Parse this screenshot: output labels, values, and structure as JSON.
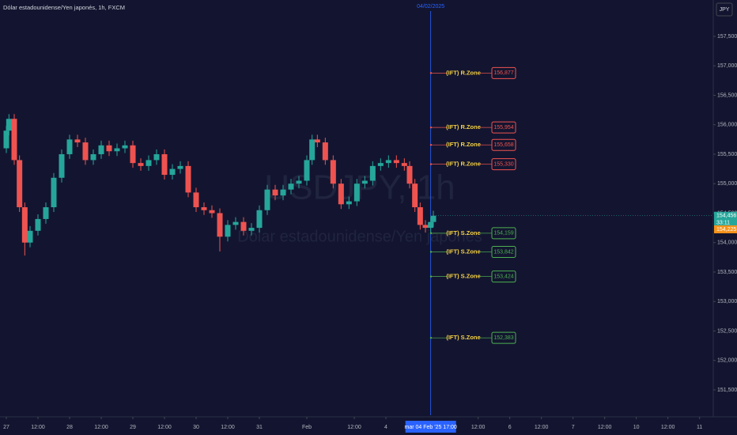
{
  "chart_data": {
    "type": "candlestick",
    "title": "Dólar estadounidense/Yen japonés, 1h, FXCM",
    "currency": "JPY",
    "watermark": [
      "USDJPY, 1h",
      "Dólar estadounidense/Yen japonés"
    ],
    "crosshair_date": "04/02/2025",
    "crosshair_time_label": "mar 04 Feb '25  17:00",
    "crosshair_x": 161,
    "up_color": "#26a69a",
    "down_color": "#ef5350",
    "x": [
      0,
      1,
      3,
      5,
      7,
      9,
      12,
      15,
      18,
      21,
      24,
      27,
      30,
      33,
      36,
      39,
      42,
      45,
      48,
      51,
      54,
      57,
      60,
      63,
      66,
      69,
      72,
      75,
      78,
      81,
      84,
      87,
      90,
      93,
      96,
      99,
      102,
      105,
      108,
      111,
      114,
      116,
      118,
      121,
      124,
      127,
      130,
      133,
      136,
      139,
      142,
      145,
      148,
      151,
      153,
      155,
      157,
      159,
      161,
      162
    ],
    "open": [
      155.6,
      155.9,
      156.1,
      155.4,
      154.6,
      154.0,
      154.2,
      154.4,
      154.6,
      155.1,
      155.5,
      155.75,
      155.7,
      155.4,
      155.5,
      155.65,
      155.55,
      155.6,
      155.65,
      155.35,
      155.3,
      155.4,
      155.5,
      155.15,
      155.25,
      155.3,
      154.85,
      154.6,
      154.55,
      154.5,
      154.1,
      154.3,
      154.35,
      154.2,
      154.25,
      154.55,
      154.9,
      154.8,
      154.9,
      155.0,
      155.05,
      155.4,
      155.75,
      155.7,
      155.4,
      155.0,
      154.65,
      154.7,
      155.0,
      155.05,
      155.3,
      155.35,
      155.4,
      155.35,
      155.3,
      155.0,
      154.6,
      154.3,
      154.25,
      154.35
    ],
    "high": [
      155.98,
      156.18,
      156.18,
      155.48,
      154.68,
      154.28,
      154.48,
      154.68,
      155.18,
      155.58,
      155.83,
      155.83,
      155.78,
      155.58,
      155.73,
      155.73,
      155.68,
      155.73,
      155.73,
      155.43,
      155.48,
      155.58,
      155.58,
      155.33,
      155.38,
      155.38,
      154.93,
      154.68,
      154.63,
      154.58,
      154.38,
      154.43,
      154.43,
      154.33,
      154.63,
      154.98,
      154.98,
      154.98,
      155.08,
      155.13,
      155.48,
      155.83,
      155.83,
      155.78,
      155.48,
      155.08,
      154.78,
      155.08,
      155.13,
      155.38,
      155.43,
      155.48,
      155.48,
      155.43,
      155.38,
      155.08,
      154.68,
      154.38,
      154.43,
      154.54
    ],
    "low": [
      155.52,
      155.82,
      155.32,
      154.52,
      153.78,
      153.92,
      154.12,
      154.32,
      154.52,
      155.02,
      155.42,
      155.62,
      155.32,
      155.32,
      155.42,
      155.47,
      155.47,
      155.52,
      155.27,
      155.22,
      155.22,
      155.32,
      155.07,
      155.07,
      155.17,
      154.77,
      154.52,
      154.47,
      154.42,
      153.85,
      154.02,
      154.22,
      154.12,
      154.12,
      154.17,
      154.47,
      154.72,
      154.72,
      154.82,
      154.92,
      154.97,
      155.32,
      155.62,
      155.32,
      154.92,
      154.57,
      154.57,
      154.62,
      154.92,
      154.97,
      155.22,
      155.27,
      155.27,
      155.22,
      154.92,
      154.52,
      154.22,
      154.17,
      154.17,
      154.27
    ],
    "close": [
      155.9,
      156.1,
      155.4,
      154.6,
      154.0,
      154.2,
      154.4,
      154.6,
      155.1,
      155.5,
      155.75,
      155.7,
      155.4,
      155.5,
      155.65,
      155.55,
      155.6,
      155.65,
      155.35,
      155.3,
      155.4,
      155.5,
      155.15,
      155.25,
      155.3,
      154.85,
      154.6,
      154.55,
      154.5,
      154.1,
      154.3,
      154.35,
      154.2,
      154.25,
      154.55,
      154.9,
      154.8,
      154.9,
      155.0,
      155.05,
      155.4,
      155.75,
      155.7,
      155.4,
      155.0,
      154.65,
      154.7,
      155.0,
      155.05,
      155.3,
      155.35,
      155.4,
      155.35,
      155.3,
      155.0,
      154.6,
      154.3,
      154.25,
      154.35,
      154.456
    ],
    "xlim": [
      -2.4,
      268.2
    ],
    "xticks": [
      {
        "value": 0,
        "label": "27"
      },
      {
        "value": 12,
        "label": "12:00"
      },
      {
        "value": 24,
        "label": "28"
      },
      {
        "value": 36,
        "label": "12:00"
      },
      {
        "value": 48,
        "label": "29"
      },
      {
        "value": 60,
        "label": "12:00"
      },
      {
        "value": 72,
        "label": "30"
      },
      {
        "value": 84,
        "label": "12:00"
      },
      {
        "value": 96,
        "label": "31"
      },
      {
        "value": 114,
        "label": "Feb"
      },
      {
        "value": 132,
        "label": "12:00"
      },
      {
        "value": 144,
        "label": "4"
      },
      {
        "value": 179,
        "label": "12:00"
      },
      {
        "value": 191,
        "label": "6"
      },
      {
        "value": 203,
        "label": "12:00"
      },
      {
        "value": 215,
        "label": "7"
      },
      {
        "value": 227,
        "label": "12:00"
      },
      {
        "value": 239,
        "label": "10"
      },
      {
        "value": 251,
        "label": "12:00"
      },
      {
        "value": 263,
        "label": "11"
      }
    ],
    "ylim": [
      151.07,
      158.117
    ],
    "yticks": [
      {
        "value": 157.5,
        "label": "157,500"
      },
      {
        "value": 157,
        "label": "157,000"
      },
      {
        "value": 156.5,
        "label": "156,500"
      },
      {
        "value": 156,
        "label": "156,000"
      },
      {
        "value": 155.5,
        "label": "155,500"
      },
      {
        "value": 155,
        "label": "155,000"
      },
      {
        "value": 154.5,
        "label": "154,500"
      },
      {
        "value": 154,
        "label": "154,000"
      },
      {
        "value": 153.5,
        "label": "153,500"
      },
      {
        "value": 153,
        "label": "153,000"
      },
      {
        "value": 152.5,
        "label": "152,500"
      },
      {
        "value": 152,
        "label": "152,000"
      },
      {
        "value": 151.5,
        "label": "151,500"
      }
    ],
    "resistance_zones": {
      "name": "(IFT) R.Zone",
      "color": "#ef5350",
      "values": [
        156.877,
        155.954,
        155.658,
        155.33
      ],
      "value_labels": [
        "156,877",
        "155,954",
        "155,658",
        "155,330"
      ]
    },
    "support_zones": {
      "name": "(IFT) S.Zone",
      "color": "#4caf50",
      "values": [
        154.159,
        153.842,
        153.424,
        152.383
      ],
      "value_labels": [
        "154,159",
        "153,842",
        "153,424",
        "152,383"
      ]
    },
    "last_price": 154.456,
    "last_price_label": "154,456",
    "countdown": "33:11",
    "ref_price": 154.225,
    "ref_price_label": "154,225"
  }
}
